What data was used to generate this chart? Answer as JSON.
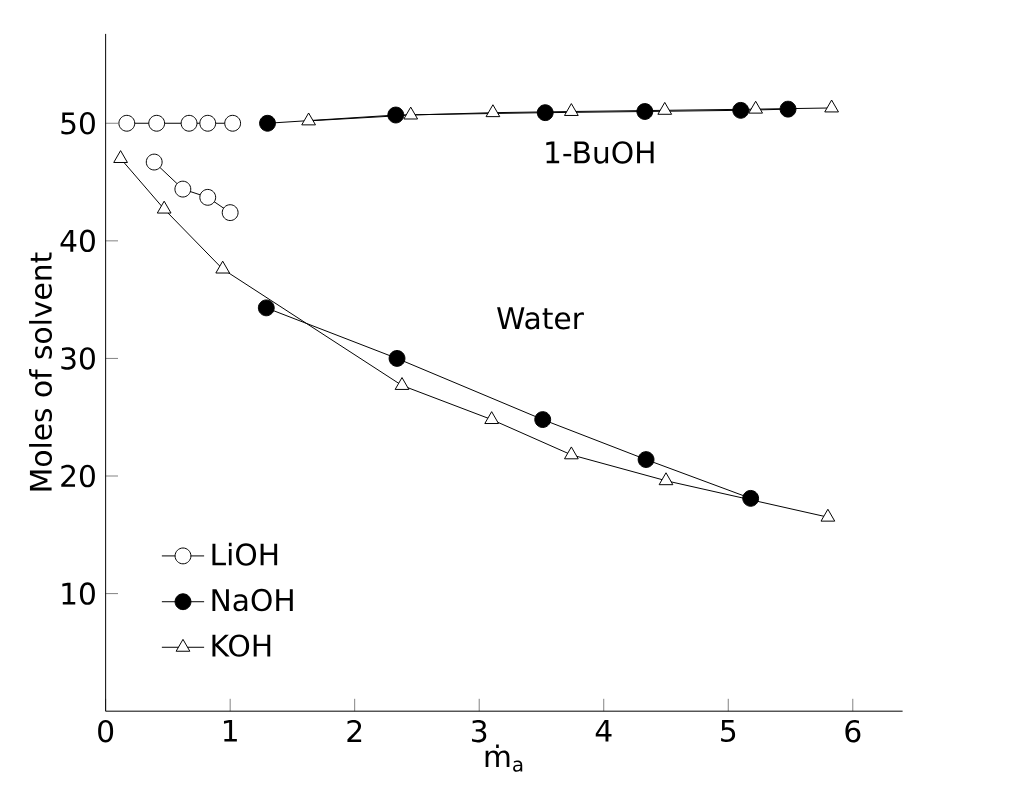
{
  "chart_data": {
    "type": "line",
    "xlabel": "ṁ$_{a}$",
    "ylabel": "Moles of solvent",
    "xlim": [
      0,
      6.4
    ],
    "ylim": [
      0,
      57.6
    ],
    "xticks": [
      0,
      1,
      2,
      3,
      4,
      5,
      6
    ],
    "yticks": [
      10,
      20,
      30,
      40,
      50
    ],
    "grid": false,
    "legend": "bottom left",
    "annotations": [
      "1-BuOH",
      "Water"
    ],
    "series": [
      {
        "name": "LiOH",
        "color": "#ffffff",
        "marker": "circle",
        "x": [
          0.17,
          0.41,
          0.67,
          0.82,
          1.02
        ],
        "values": [
          50.0,
          50.0,
          50.0,
          50.0,
          50.0
        ]
      },
      {
        "name": "NaOH",
        "color": "#000000",
        "marker": "circle",
        "x": [
          1.3,
          2.33,
          3.53,
          4.33,
          5.1,
          5.48
        ],
        "values": [
          50.0,
          50.7,
          50.9,
          51.0,
          51.1,
          51.2
        ]
      },
      {
        "name": "KOH",
        "color": "#ffffff",
        "marker": "triangle",
        "x": [
          1.63,
          2.45,
          3.11,
          3.74,
          4.49,
          5.22,
          5.83
        ],
        "values": [
          50.2,
          50.7,
          50.9,
          51.0,
          51.1,
          51.2,
          51.3
        ]
      },
      {
        "color": "#ffffff",
        "marker": "circle",
        "x": [
          0.39,
          0.62,
          0.82,
          1.0
        ],
        "values": [
          46.7,
          44.4,
          43.7,
          42.4
        ]
      },
      {
        "color": "#000000",
        "marker": "circle",
        "x": [
          1.29,
          2.34,
          3.51,
          4.34,
          5.18
        ],
        "values": [
          34.3,
          30.0,
          24.8,
          21.4,
          18.1
        ]
      },
      {
        "color": "#ffffff",
        "marker": "triangle",
        "x": [
          0.12,
          0.47,
          0.94,
          2.38,
          3.1,
          3.74,
          4.5,
          5.8
        ],
        "values": [
          47.0,
          42.7,
          37.6,
          27.7,
          24.8,
          21.8,
          19.6,
          16.5
        ]
      }
    ]
  }
}
